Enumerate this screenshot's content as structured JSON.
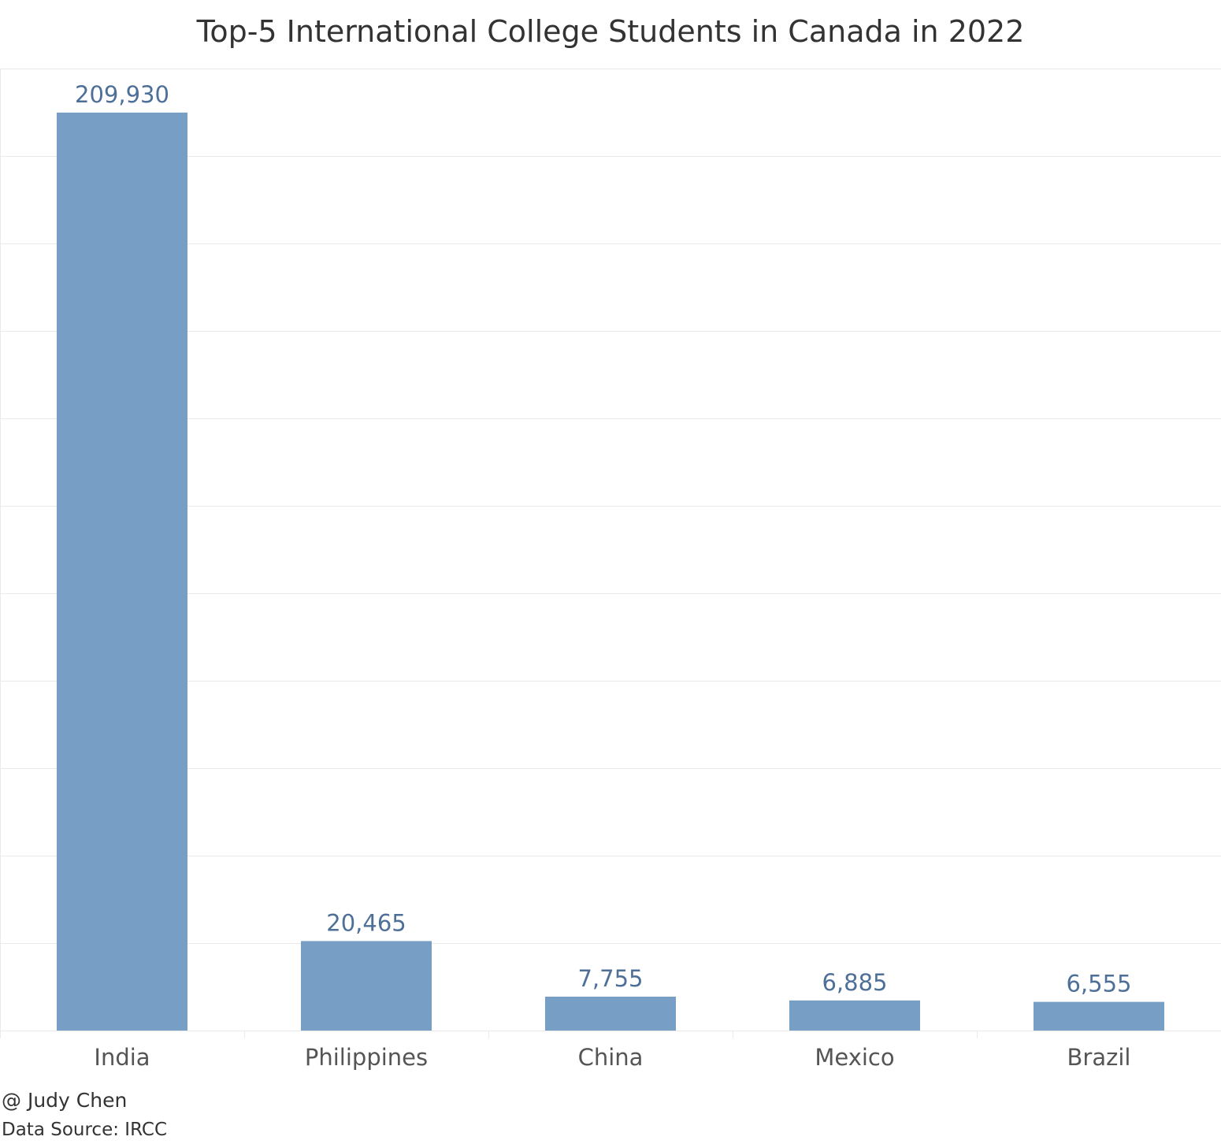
{
  "chart_data": {
    "type": "bar",
    "title": "Top-5 International College Students in Canada in 2022",
    "categories": [
      "India",
      "Philippines",
      "China",
      "Mexico",
      "Brazil"
    ],
    "values": [
      209930,
      20465,
      7755,
      6885,
      6555
    ],
    "value_labels": [
      "209,930",
      "20,465",
      "7,755",
      "6,885",
      "6,555"
    ],
    "xlabel": "",
    "ylabel": "",
    "ylim": [
      0,
      220000
    ],
    "grid": true,
    "legend": "none"
  },
  "footer": {
    "author": "@ Judy Chen",
    "source": "Data Source: IRCC"
  },
  "colors": {
    "bar": "#779fc5",
    "value_label": "#4d6f98",
    "tick_label": "#555555",
    "grid": "#eaeaea"
  }
}
